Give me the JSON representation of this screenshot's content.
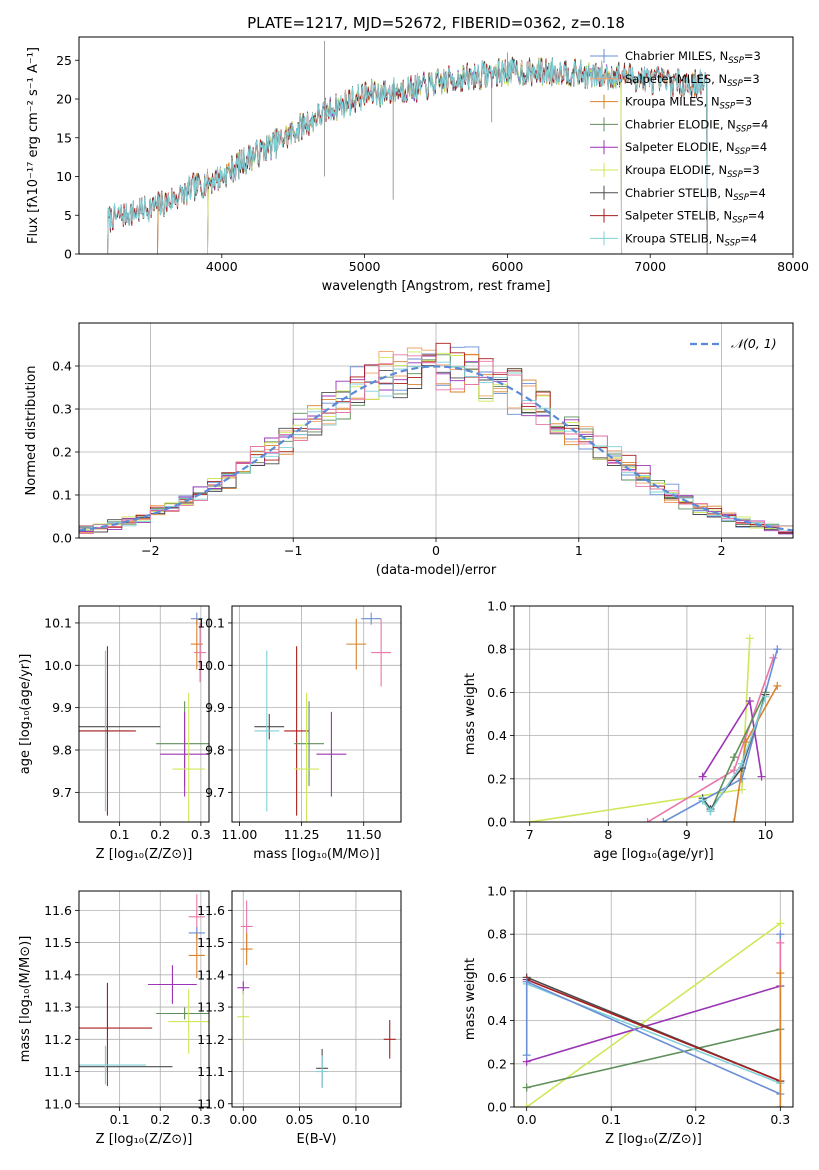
{
  "figure": {
    "title": "PLATE=1217, MJD=52672, FIBERID=0362, z=0.18"
  },
  "colors": {
    "chabrier_miles": "#6a8fd6",
    "salpeter_miles": "#f2a06a",
    "kroupa_miles": "#d9822b",
    "chabrier_elodie": "#5f8f5a",
    "salpeter_elodie": "#9b34b5",
    "kroupa_elodie": "#cfe85a",
    "chabrier_stelib": "#4d4d4d",
    "salpeter_stelib": "#a81e1e",
    "kroupa_stelib": "#7fd0d8",
    "pink": "#e876a8",
    "gaussian": "#5b8bd8",
    "grid": "#b0b0b0"
  },
  "chart_data": [
    {
      "id": "spectrum",
      "type": "line",
      "title": "PLATE=1217, MJD=52672, FIBERID=0362, z=0.18",
      "xlabel": "wavelength [Angstrom, rest frame]",
      "ylabel": "Flux [fλ10⁻¹⁷ erg cm⁻² s⁻¹ A⁻¹]",
      "xlim": [
        3000,
        8000
      ],
      "ylim": [
        0,
        28
      ],
      "xticks": [
        4000,
        5000,
        6000,
        7000,
        8000
      ],
      "yticks": [
        0,
        5,
        10,
        15,
        20,
        25
      ],
      "grid": false,
      "legend_position": "right",
      "continuum": {
        "x": [
          3200,
          3400,
          3600,
          3800,
          4000,
          4200,
          4400,
          4600,
          4800,
          5000,
          5200,
          5400,
          5600,
          5800,
          6000,
          6200,
          6400,
          6600,
          6800,
          7000,
          7200,
          7400,
          7600
        ],
        "y": [
          4.5,
          5.5,
          6.5,
          8.5,
          10.0,
          12.5,
          14.5,
          17.0,
          19.0,
          20.5,
          21.0,
          21.5,
          22.5,
          23.0,
          23.5,
          23.5,
          23.5,
          23.0,
          23.0,
          22.5,
          22.0,
          22.0,
          21.5
        ]
      },
      "series": [
        {
          "name": "Chabrier MILES, N_SSP=3",
          "label_main": "Chabrier MILES, N",
          "label_sub": "SSP",
          "label_tail": "=3",
          "color_key": "chabrier_miles",
          "x_start": 3550,
          "x_end": 7400
        },
        {
          "name": "Salpeter MILES, N_SSP=3",
          "label_main": "Salpeter MILES, N",
          "label_sub": "SSP",
          "label_tail": "=3",
          "color_key": "salpeter_miles",
          "x_start": 3550,
          "x_end": 7400
        },
        {
          "name": "Kroupa MILES, N_SSP=3",
          "label_main": "Kroupa MILES, N",
          "label_sub": "SSP",
          "label_tail": "=3",
          "color_key": "kroupa_miles",
          "x_start": 3550,
          "x_end": 7400
        },
        {
          "name": "Chabrier ELODIE, N_SSP=4",
          "label_main": "Chabrier ELODIE, N",
          "label_sub": "SSP",
          "label_tail": "=4",
          "color_key": "chabrier_elodie",
          "x_start": 3900,
          "x_end": 6800
        },
        {
          "name": "Salpeter ELODIE, N_SSP=4",
          "label_main": "Salpeter ELODIE, N",
          "label_sub": "SSP",
          "label_tail": "=4",
          "color_key": "salpeter_elodie",
          "x_start": 3900,
          "x_end": 6800
        },
        {
          "name": "Kroupa ELODIE, N_SSP=3",
          "label_main": "Kroupa ELODIE, N",
          "label_sub": "SSP",
          "label_tail": "=3",
          "color_key": "kroupa_elodie",
          "x_start": 3900,
          "x_end": 6800
        },
        {
          "name": "Chabrier STELIB, N_SSP=4",
          "label_main": "Chabrier STELIB, N",
          "label_sub": "SSP",
          "label_tail": "=4",
          "color_key": "chabrier_stelib",
          "x_start": 3200,
          "x_end": 7400
        },
        {
          "name": "Salpeter STELIB, N_SSP=4",
          "label_main": "Salpeter STELIB, N",
          "label_sub": "SSP",
          "label_tail": "=4",
          "color_key": "salpeter_stelib",
          "x_start": 3200,
          "x_end": 7400
        },
        {
          "name": "Kroupa STELIB, N_SSP=4",
          "label_main": "Kroupa STELIB, N",
          "label_sub": "SSP",
          "label_tail": "=4",
          "color_key": "kroupa_stelib",
          "x_start": 3200,
          "x_end": 7400
        }
      ]
    },
    {
      "id": "residuals",
      "type": "line",
      "xlabel": "(data-model)/error",
      "ylabel": "Normed distribution",
      "xlim": [
        -2.5,
        2.5
      ],
      "ylim": [
        0,
        0.5
      ],
      "xticks": [
        -2,
        -1,
        0,
        1,
        2
      ],
      "yticks": [
        0.0,
        0.1,
        0.2,
        0.3,
        0.4
      ],
      "grid": true,
      "legend_position": "top-right",
      "legend_label": "𝒩(0, 1)",
      "bin_width": 0.1,
      "histogram_series": [
        "chabrier_miles",
        "salpeter_miles",
        "kroupa_miles",
        "chabrier_elodie",
        "salpeter_elodie",
        "kroupa_elodie",
        "chabrier_stelib",
        "salpeter_stelib",
        "kroupa_stelib",
        "pink"
      ],
      "gaussian": {
        "mu": 0,
        "sigma": 1
      }
    },
    {
      "id": "age-vs-metallicity",
      "type": "scatter",
      "xlabel": "Z [log₁₀(Z/Z⊙)]",
      "ylabel": "age  [log₁₀(age/yr)]",
      "xlim": [
        0.0,
        0.32
      ],
      "ylim": [
        9.63,
        10.14
      ],
      "xticks": [
        0.1,
        0.2,
        0.3
      ],
      "yticks": [
        9.7,
        9.8,
        9.9,
        10.0,
        10.1
      ],
      "grid": true,
      "points": [
        {
          "c": "chabrier_miles",
          "x": 0.29,
          "y": 10.11,
          "dx": 0.01,
          "dy": 0.0
        },
        {
          "c": "kroupa_miles",
          "x": 0.29,
          "y": 10.05,
          "dx": 0.015,
          "dy": 0.06
        },
        {
          "c": "pink",
          "x": 0.298,
          "y": 10.03,
          "dx": 0.005,
          "dy": 0.07
        },
        {
          "c": "chabrier_stelib",
          "x": 0.07,
          "y": 9.855,
          "dx": 0.13,
          "dy": 0.05
        },
        {
          "c": "kroupa_stelib",
          "x": 0.065,
          "y": 9.845,
          "dx": 0.06,
          "dy": 0.19
        },
        {
          "c": "salpeter_stelib",
          "x": 0.07,
          "y": 9.845,
          "dx": 0.07,
          "dy": 0.2
        },
        {
          "c": "chabrier_elodie",
          "x": 0.26,
          "y": 9.815,
          "dx": 0.07,
          "dy": 0.1
        },
        {
          "c": "salpeter_elodie",
          "x": 0.26,
          "y": 9.79,
          "dx": 0.06,
          "dy": 0.1
        },
        {
          "c": "kroupa_elodie",
          "x": 0.27,
          "y": 9.755,
          "dx": 0.04,
          "dy": 0.18
        }
      ]
    },
    {
      "id": "age-vs-mass",
      "type": "scatter",
      "xlabel": "mass [log₁₀(M/M⊙)]",
      "ylabel": "",
      "xlim": [
        10.97,
        11.65
      ],
      "ylim": [
        9.63,
        10.14
      ],
      "xticks": [
        11.0,
        11.25,
        11.5
      ],
      "yticks": [
        9.7,
        9.8,
        9.9,
        10.0,
        10.1
      ],
      "grid": true,
      "points": [
        {
          "c": "chabrier_miles",
          "x": 11.53,
          "y": 10.11,
          "dx": 0.04,
          "dy": 0.01
        },
        {
          "c": "kroupa_miles",
          "x": 11.47,
          "y": 10.05,
          "dx": 0.04,
          "dy": 0.06
        },
        {
          "c": "pink",
          "x": 11.57,
          "y": 10.03,
          "dx": 0.04,
          "dy": 0.08
        },
        {
          "c": "chabrier_stelib",
          "x": 11.12,
          "y": 9.855,
          "dx": 0.06,
          "dy": 0.03
        },
        {
          "c": "kroupa_stelib",
          "x": 11.11,
          "y": 9.845,
          "dx": 0.05,
          "dy": 0.19
        },
        {
          "c": "salpeter_stelib",
          "x": 11.23,
          "y": 9.845,
          "dx": 0.05,
          "dy": 0.2
        },
        {
          "c": "chabrier_elodie",
          "x": 11.28,
          "y": 9.815,
          "dx": 0.06,
          "dy": 0.1
        },
        {
          "c": "salpeter_elodie",
          "x": 11.37,
          "y": 9.79,
          "dx": 0.06,
          "dy": 0.1
        },
        {
          "c": "kroupa_elodie",
          "x": 11.27,
          "y": 9.755,
          "dx": 0.05,
          "dy": 0.18
        }
      ]
    },
    {
      "id": "weight-vs-age",
      "type": "line",
      "xlabel": "age  [log₁₀(age/yr)]",
      "ylabel": "mass weight",
      "xlim": [
        6.8,
        10.35
      ],
      "ylim": [
        0,
        1.0
      ],
      "xticks": [
        7,
        8,
        9,
        10
      ],
      "yticks": [
        0.0,
        0.2,
        0.4,
        0.6,
        0.8,
        1.0
      ],
      "grid": true,
      "series": [
        {
          "c": "kroupa_elodie",
          "x": [
            7.0,
            9.7,
            9.8
          ],
          "y": [
            0.0,
            0.15,
            0.85
          ]
        },
        {
          "c": "pink",
          "x": [
            8.5,
            9.6,
            10.1
          ],
          "y": [
            0.0,
            0.24,
            0.76
          ]
        },
        {
          "c": "chabrier_miles",
          "x": [
            8.7,
            9.7,
            10.15
          ],
          "y": [
            0.0,
            0.2,
            0.8
          ]
        },
        {
          "c": "kroupa_miles",
          "x": [
            9.6,
            9.75,
            10.15
          ],
          "y": [
            0.0,
            0.37,
            0.63
          ]
        },
        {
          "c": "salpeter_elodie",
          "x": [
            9.2,
            9.8,
            9.95
          ],
          "y": [
            0.21,
            0.56,
            0.21
          ]
        },
        {
          "c": "chabrier_elodie",
          "x": [
            9.2,
            9.3,
            9.6,
            10.0
          ],
          "y": [
            0.1,
            0.05,
            0.3,
            0.6
          ]
        },
        {
          "c": "chabrier_stelib",
          "x": [
            9.2,
            9.3,
            9.7,
            10.0
          ],
          "y": [
            0.11,
            0.06,
            0.25,
            0.59
          ]
        },
        {
          "c": "kroupa_stelib",
          "x": [
            9.2,
            9.3,
            9.7,
            10.0
          ],
          "y": [
            0.1,
            0.05,
            0.27,
            0.58
          ]
        }
      ]
    },
    {
      "id": "mass-vs-metallicity",
      "type": "scatter",
      "xlabel": "Z [log₁₀(Z/Z⊙)]",
      "ylabel": "mass [log₁₀(M/M⊙)]",
      "xlim": [
        0.0,
        0.32
      ],
      "ylim": [
        10.99,
        11.66
      ],
      "xticks": [
        0.1,
        0.2,
        0.3
      ],
      "yticks": [
        11.0,
        11.1,
        11.2,
        11.3,
        11.4,
        11.5,
        11.6
      ],
      "grid": true,
      "points": [
        {
          "c": "pink",
          "x": 0.29,
          "y": 11.58,
          "dx": 0.02,
          "dy": 0.07
        },
        {
          "c": "chabrier_miles",
          "x": 0.29,
          "y": 11.53,
          "dx": 0.02,
          "dy": 0.0
        },
        {
          "c": "kroupa_miles",
          "x": 0.29,
          "y": 11.46,
          "dx": 0.02,
          "dy": 0.07
        },
        {
          "c": "salpeter_elodie",
          "x": 0.23,
          "y": 11.37,
          "dx": 0.06,
          "dy": 0.06
        },
        {
          "c": "chabrier_elodie",
          "x": 0.26,
          "y": 11.28,
          "dx": 0.07,
          "dy": 0.0
        },
        {
          "c": "kroupa_elodie",
          "x": 0.27,
          "y": 11.255,
          "dx": 0.05,
          "dy": 0.1
        },
        {
          "c": "salpeter_stelib",
          "x": 0.07,
          "y": 11.235,
          "dx": 0.11,
          "dy": 0.14
        },
        {
          "c": "chabrier_stelib",
          "x": 0.07,
          "y": 11.115,
          "dx": 0.16,
          "dy": 0.06
        },
        {
          "c": "kroupa_stelib",
          "x": 0.065,
          "y": 11.12,
          "dx": 0.1,
          "dy": 0.06
        }
      ]
    },
    {
      "id": "mass-vs-ebv",
      "type": "scatter",
      "xlabel": "E(B-V)",
      "ylabel": "",
      "xlim": [
        -0.01,
        0.14
      ],
      "ylim": [
        10.99,
        11.66
      ],
      "xticks": [
        0.0,
        0.05,
        0.1
      ],
      "yticks": [
        11.0,
        11.1,
        11.2,
        11.3,
        11.4,
        11.5,
        11.6
      ],
      "grid": true,
      "points": [
        {
          "c": "pink",
          "x": 0.003,
          "y": 11.55,
          "dx": 0.0,
          "dy": 0.08
        },
        {
          "c": "kroupa_miles",
          "x": 0.003,
          "y": 11.48,
          "dx": 0.0,
          "dy": 0.05
        },
        {
          "c": "salpeter_elodie",
          "x": 0.0,
          "y": 11.36,
          "dx": 0.0,
          "dy": 0.02
        },
        {
          "c": "kroupa_elodie",
          "x": 0.0,
          "y": 11.27,
          "dx": 0.0,
          "dy": 0.08
        },
        {
          "c": "salpeter_stelib",
          "x": 0.13,
          "y": 11.2,
          "dx": 0.0,
          "dy": 0.06
        },
        {
          "c": "chabrier_stelib",
          "x": 0.07,
          "y": 11.11,
          "dx": 0.0,
          "dy": 0.06
        },
        {
          "c": "kroupa_stelib",
          "x": 0.07,
          "y": 11.1,
          "dx": 0.0,
          "dy": 0.05
        }
      ]
    },
    {
      "id": "weight-vs-metallicity",
      "type": "line",
      "xlabel": "Z [log₁₀(Z/Z⊙)]",
      "ylabel": "mass weight",
      "xlim": [
        -0.015,
        0.315
      ],
      "ylim": [
        0,
        1.0
      ],
      "xticks": [
        0.0,
        0.1,
        0.2,
        0.3
      ],
      "yticks": [
        0.0,
        0.2,
        0.4,
        0.6,
        0.8,
        1.0
      ],
      "grid": true,
      "series": [
        {
          "c": "kroupa_elodie",
          "x": [
            0.0,
            0.3
          ],
          "y": [
            0.0,
            0.85
          ]
        },
        {
          "c": "salpeter_elodie",
          "x": [
            0.0,
            0.3
          ],
          "y": [
            0.21,
            0.56
          ]
        },
        {
          "c": "chabrier_elodie",
          "x": [
            0.0,
            0.3
          ],
          "y": [
            0.09,
            0.36
          ]
        },
        {
          "c": "chabrier_stelib",
          "x": [
            0.0,
            0.3
          ],
          "y": [
            0.6,
            0.12
          ]
        },
        {
          "c": "salpeter_stelib",
          "x": [
            0.0,
            0.3
          ],
          "y": [
            0.59,
            0.12
          ]
        },
        {
          "c": "kroupa_stelib",
          "x": [
            0.0,
            0.3
          ],
          "y": [
            0.57,
            0.11
          ]
        },
        {
          "c": "chabrier_miles",
          "x": [
            0.0,
            0.0,
            0.3,
            0.3
          ],
          "y": [
            0.24,
            0.58,
            0.06,
            0.8
          ]
        },
        {
          "c": "pink",
          "x": [
            0.3,
            0.3
          ],
          "y": [
            0.0,
            0.76
          ]
        },
        {
          "c": "kroupa_miles",
          "x": [
            0.3,
            0.3
          ],
          "y": [
            0.0,
            0.62
          ]
        }
      ]
    }
  ]
}
